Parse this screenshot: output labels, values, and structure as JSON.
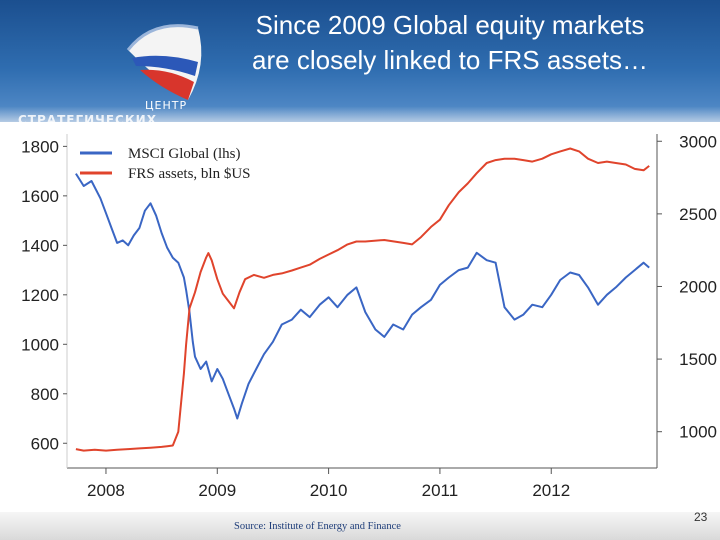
{
  "slide": {
    "title_line1": "Since 2009 Global equity markets",
    "title_line2": "are closely linked to FRS assets…",
    "logo_text": "ЦЕНТР",
    "logo_subtext": "СТРАТЕГИЧЕСКИХ",
    "source": "Source: Institute of Energy and Finance",
    "page_number": "23"
  },
  "colors": {
    "msci": "#3a66c4",
    "frs": "#e0442c",
    "header": "#2f6db0"
  },
  "chart_data": {
    "type": "line",
    "title": "",
    "xlim": [
      2007.65,
      2012.95
    ],
    "x_ticks": [
      2008,
      2009,
      2010,
      2011,
      2012
    ],
    "y_left": {
      "lim": [
        500,
        1850
      ],
      "ticks": [
        600,
        800,
        1000,
        1200,
        1400,
        1600,
        1800
      ]
    },
    "y_right": {
      "lim": [
        750,
        3050
      ],
      "ticks": [
        1000,
        1500,
        2000,
        2500,
        3000
      ]
    },
    "legend": [
      "MSCI Global (lhs)",
      "FRS assets, bln $US"
    ],
    "legend_position": "top-left",
    "series": [
      {
        "name": "MSCI Global (lhs)",
        "axis": "left",
        "points": [
          [
            2007.73,
            1690
          ],
          [
            2007.8,
            1640
          ],
          [
            2007.87,
            1660
          ],
          [
            2007.95,
            1590
          ],
          [
            2008.0,
            1530
          ],
          [
            2008.05,
            1470
          ],
          [
            2008.1,
            1410
          ],
          [
            2008.15,
            1420
          ],
          [
            2008.2,
            1400
          ],
          [
            2008.25,
            1440
          ],
          [
            2008.3,
            1470
          ],
          [
            2008.35,
            1540
          ],
          [
            2008.4,
            1570
          ],
          [
            2008.45,
            1520
          ],
          [
            2008.5,
            1450
          ],
          [
            2008.55,
            1390
          ],
          [
            2008.6,
            1350
          ],
          [
            2008.65,
            1330
          ],
          [
            2008.7,
            1270
          ],
          [
            2008.72,
            1220
          ],
          [
            2008.75,
            1130
          ],
          [
            2008.78,
            1010
          ],
          [
            2008.8,
            950
          ],
          [
            2008.85,
            900
          ],
          [
            2008.9,
            930
          ],
          [
            2008.95,
            850
          ],
          [
            2009.0,
            900
          ],
          [
            2009.05,
            860
          ],
          [
            2009.1,
            800
          ],
          [
            2009.15,
            740
          ],
          [
            2009.18,
            700
          ],
          [
            2009.22,
            760
          ],
          [
            2009.28,
            840
          ],
          [
            2009.35,
            900
          ],
          [
            2009.42,
            960
          ],
          [
            2009.5,
            1010
          ],
          [
            2009.58,
            1080
          ],
          [
            2009.67,
            1100
          ],
          [
            2009.75,
            1140
          ],
          [
            2009.83,
            1110
          ],
          [
            2009.92,
            1160
          ],
          [
            2010.0,
            1190
          ],
          [
            2010.08,
            1150
          ],
          [
            2010.17,
            1200
          ],
          [
            2010.25,
            1230
          ],
          [
            2010.33,
            1130
          ],
          [
            2010.42,
            1060
          ],
          [
            2010.5,
            1030
          ],
          [
            2010.58,
            1080
          ],
          [
            2010.67,
            1060
          ],
          [
            2010.75,
            1120
          ],
          [
            2010.83,
            1150
          ],
          [
            2010.92,
            1180
          ],
          [
            2011.0,
            1240
          ],
          [
            2011.08,
            1270
          ],
          [
            2011.17,
            1300
          ],
          [
            2011.25,
            1310
          ],
          [
            2011.33,
            1370
          ],
          [
            2011.42,
            1340
          ],
          [
            2011.5,
            1330
          ],
          [
            2011.58,
            1150
          ],
          [
            2011.67,
            1100
          ],
          [
            2011.75,
            1120
          ],
          [
            2011.83,
            1160
          ],
          [
            2011.92,
            1150
          ],
          [
            2012.0,
            1200
          ],
          [
            2012.08,
            1260
          ],
          [
            2012.17,
            1290
          ],
          [
            2012.25,
            1280
          ],
          [
            2012.33,
            1230
          ],
          [
            2012.42,
            1160
          ],
          [
            2012.5,
            1200
          ],
          [
            2012.58,
            1230
          ],
          [
            2012.67,
            1270
          ],
          [
            2012.75,
            1300
          ],
          [
            2012.83,
            1330
          ],
          [
            2012.88,
            1310
          ]
        ]
      },
      {
        "name": "FRS assets, bln $US",
        "axis": "right",
        "points": [
          [
            2007.73,
            880
          ],
          [
            2007.8,
            870
          ],
          [
            2007.9,
            875
          ],
          [
            2008.0,
            870
          ],
          [
            2008.1,
            875
          ],
          [
            2008.2,
            880
          ],
          [
            2008.3,
            885
          ],
          [
            2008.4,
            890
          ],
          [
            2008.5,
            895
          ],
          [
            2008.55,
            900
          ],
          [
            2008.6,
            905
          ],
          [
            2008.65,
            1000
          ],
          [
            2008.7,
            1400
          ],
          [
            2008.72,
            1600
          ],
          [
            2008.75,
            1850
          ],
          [
            2008.8,
            1960
          ],
          [
            2008.85,
            2100
          ],
          [
            2008.9,
            2200
          ],
          [
            2008.92,
            2230
          ],
          [
            2008.95,
            2180
          ],
          [
            2009.0,
            2050
          ],
          [
            2009.05,
            1950
          ],
          [
            2009.1,
            1900
          ],
          [
            2009.15,
            1850
          ],
          [
            2009.2,
            1960
          ],
          [
            2009.25,
            2050
          ],
          [
            2009.33,
            2080
          ],
          [
            2009.42,
            2060
          ],
          [
            2009.5,
            2080
          ],
          [
            2009.58,
            2090
          ],
          [
            2009.67,
            2110
          ],
          [
            2009.75,
            2130
          ],
          [
            2009.83,
            2150
          ],
          [
            2009.92,
            2190
          ],
          [
            2010.0,
            2220
          ],
          [
            2010.08,
            2250
          ],
          [
            2010.17,
            2290
          ],
          [
            2010.25,
            2310
          ],
          [
            2010.33,
            2310
          ],
          [
            2010.5,
            2320
          ],
          [
            2010.67,
            2300
          ],
          [
            2010.75,
            2290
          ],
          [
            2010.83,
            2340
          ],
          [
            2010.92,
            2410
          ],
          [
            2011.0,
            2460
          ],
          [
            2011.08,
            2560
          ],
          [
            2011.17,
            2650
          ],
          [
            2011.25,
            2710
          ],
          [
            2011.33,
            2780
          ],
          [
            2011.42,
            2850
          ],
          [
            2011.5,
            2870
          ],
          [
            2011.58,
            2880
          ],
          [
            2011.67,
            2880
          ],
          [
            2011.75,
            2870
          ],
          [
            2011.83,
            2860
          ],
          [
            2011.92,
            2880
          ],
          [
            2012.0,
            2910
          ],
          [
            2012.08,
            2930
          ],
          [
            2012.17,
            2950
          ],
          [
            2012.25,
            2930
          ],
          [
            2012.33,
            2880
          ],
          [
            2012.42,
            2850
          ],
          [
            2012.5,
            2860
          ],
          [
            2012.58,
            2850
          ],
          [
            2012.67,
            2840
          ],
          [
            2012.75,
            2810
          ],
          [
            2012.83,
            2800
          ],
          [
            2012.88,
            2830
          ]
        ]
      }
    ]
  }
}
